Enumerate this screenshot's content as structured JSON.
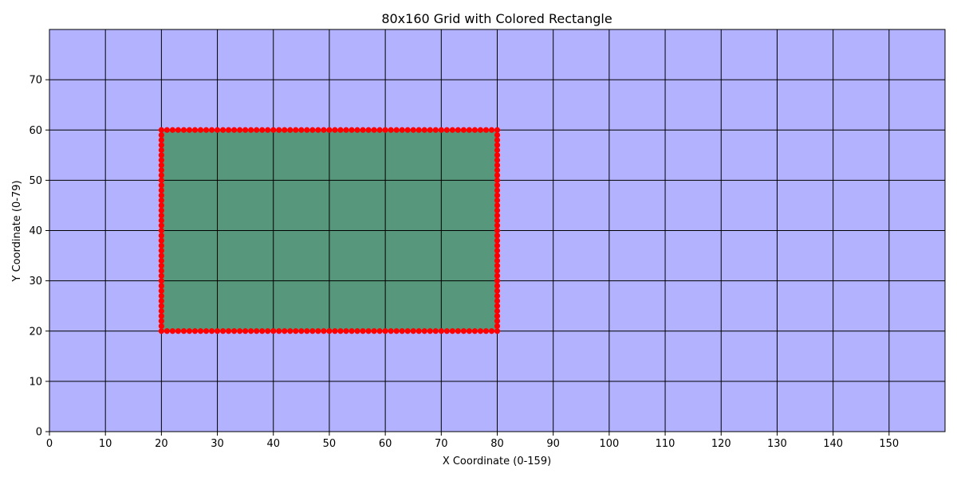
{
  "chart_data": {
    "type": "scatter",
    "title": "80x160 Grid with Colored Rectangle",
    "xlabel": "X Coordinate (0-159)",
    "ylabel": "Y Coordinate (0-79)",
    "xlim": [
      0,
      160
    ],
    "ylim": [
      0,
      80
    ],
    "xticks": [
      0,
      10,
      20,
      30,
      40,
      50,
      60,
      70,
      80,
      90,
      100,
      110,
      120,
      130,
      140,
      150
    ],
    "yticks": [
      0,
      10,
      20,
      30,
      40,
      50,
      60,
      70
    ],
    "grid": true,
    "background_color": "#b2b2ff",
    "rectangle": {
      "x_range": [
        20,
        80
      ],
      "y_range": [
        20,
        60
      ],
      "fill_color": "#57977c"
    },
    "boundary": {
      "marker_color": "#ff0000",
      "step": 1,
      "corners": [
        [
          20,
          20
        ],
        [
          80,
          20
        ],
        [
          80,
          60
        ],
        [
          20,
          60
        ]
      ]
    }
  }
}
